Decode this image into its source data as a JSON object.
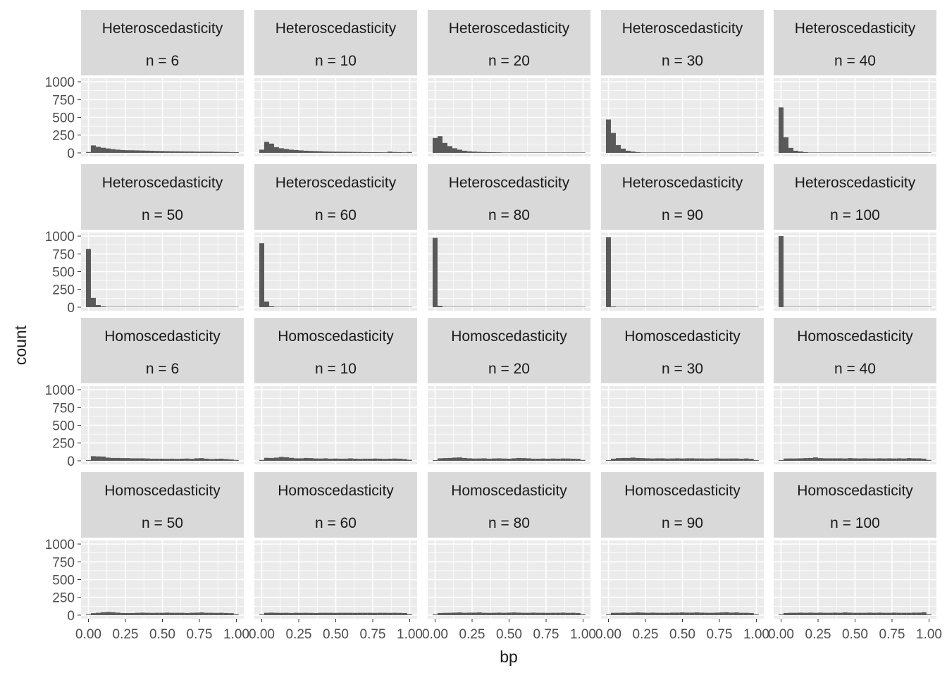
{
  "chart_data": {
    "type": "bar",
    "subtype": "faceted-histogram",
    "title": "",
    "xlabel": "bp",
    "ylabel": "count",
    "xlim": [
      0,
      1
    ],
    "ylim": [
      0,
      1000
    ],
    "x_ticks": [
      "0.00",
      "0.25",
      "0.50",
      "0.75",
      "1.00"
    ],
    "y_ticks": [
      "0",
      "250",
      "500",
      "750",
      "1000"
    ],
    "grid": true,
    "legend": "none",
    "colors": {
      "bar": "#595959",
      "panel_bg": "#ebebeb",
      "strip_bg": "#d9d9d9",
      "grid": "#ffffff",
      "text": "#1a1a1a",
      "tick_text": "#4d4d4d"
    },
    "bin_width": 0.0333,
    "bin_start": -0.0167,
    "panels": [
      {
        "group": "Heteroscedasticity",
        "n": "n = 6",
        "counts": [
          12,
          105,
          85,
          72,
          62,
          52,
          45,
          40,
          37,
          37,
          35,
          33,
          31,
          29,
          27,
          26,
          24,
          23,
          22,
          21,
          20,
          20,
          18,
          17,
          17,
          17,
          15,
          14,
          13,
          11,
          10
        ]
      },
      {
        "group": "Heteroscedasticity",
        "n": "n = 10",
        "counts": [
          45,
          155,
          130,
          80,
          65,
          55,
          45,
          40,
          35,
          30,
          27,
          25,
          23,
          20,
          18,
          17,
          16,
          15,
          14,
          13,
          12,
          11,
          10,
          10,
          9,
          8,
          18,
          12,
          10,
          8,
          12
        ]
      },
      {
        "group": "Heteroscedasticity",
        "n": "n = 20",
        "counts": [
          210,
          235,
          140,
          95,
          65,
          45,
          30,
          22,
          18,
          14,
          12,
          10,
          9,
          8,
          6,
          5,
          4,
          4,
          3,
          3,
          2,
          0,
          0,
          0,
          0,
          5,
          0,
          6,
          0,
          0,
          0
        ]
      },
      {
        "group": "Heteroscedasticity",
        "n": "n = 30",
        "counts": [
          470,
          280,
          110,
          60,
          30,
          20,
          10,
          6,
          4,
          2,
          1,
          0,
          0,
          0,
          0,
          0,
          0,
          0,
          0,
          0,
          0,
          0,
          0,
          0,
          0,
          0,
          0,
          0,
          0,
          0,
          0
        ]
      },
      {
        "group": "Heteroscedasticity",
        "n": "n = 40",
        "counts": [
          640,
          220,
          70,
          30,
          20,
          10,
          5,
          3,
          1,
          0,
          0,
          0,
          0,
          0,
          0,
          0,
          0,
          0,
          0,
          0,
          0,
          0,
          0,
          0,
          0,
          0,
          0,
          0,
          0,
          0,
          0
        ]
      },
      {
        "group": "Heteroscedasticity",
        "n": "n = 50",
        "counts": [
          820,
          130,
          30,
          12,
          5,
          2,
          1,
          0,
          0,
          0,
          0,
          0,
          0,
          0,
          0,
          0,
          0,
          0,
          0,
          0,
          0,
          0,
          0,
          0,
          0,
          0,
          0,
          0,
          0,
          0,
          0
        ]
      },
      {
        "group": "Heteroscedasticity",
        "n": "n = 60",
        "counts": [
          900,
          80,
          15,
          4,
          1,
          0,
          0,
          0,
          0,
          0,
          0,
          0,
          0,
          0,
          0,
          0,
          0,
          0,
          0,
          0,
          0,
          0,
          0,
          0,
          0,
          0,
          0,
          0,
          0,
          0,
          0
        ]
      },
      {
        "group": "Heteroscedasticity",
        "n": "n = 80",
        "counts": [
          975,
          20,
          5,
          0,
          0,
          0,
          0,
          0,
          0,
          0,
          0,
          0,
          0,
          0,
          0,
          0,
          0,
          0,
          0,
          0,
          0,
          0,
          0,
          0,
          0,
          0,
          0,
          0,
          0,
          0,
          0
        ]
      },
      {
        "group": "Heteroscedasticity",
        "n": "n = 90",
        "counts": [
          985,
          12,
          3,
          0,
          0,
          0,
          0,
          0,
          0,
          0,
          0,
          0,
          0,
          0,
          0,
          0,
          0,
          0,
          0,
          0,
          0,
          0,
          0,
          0,
          0,
          0,
          0,
          0,
          0,
          0,
          0
        ]
      },
      {
        "group": "Heteroscedasticity",
        "n": "n = 100",
        "counts": [
          1000,
          0,
          0,
          0,
          0,
          0,
          0,
          0,
          0,
          0,
          0,
          0,
          0,
          0,
          0,
          0,
          0,
          0,
          0,
          0,
          0,
          0,
          0,
          0,
          0,
          0,
          0,
          0,
          0,
          0,
          0
        ]
      },
      {
        "group": "Homoscedasticity",
        "n": "n = 6",
        "counts": [
          10,
          65,
          62,
          60,
          45,
          40,
          40,
          38,
          38,
          35,
          35,
          35,
          33,
          30,
          30,
          30,
          28,
          30,
          28,
          30,
          32,
          28,
          35,
          38,
          30,
          25,
          28,
          30,
          25,
          20,
          12
        ]
      },
      {
        "group": "Homoscedasticity",
        "n": "n = 10",
        "counts": [
          12,
          42,
          40,
          45,
          55,
          50,
          42,
          35,
          35,
          40,
          38,
          33,
          32,
          35,
          30,
          32,
          30,
          30,
          35,
          30,
          28,
          30,
          30,
          32,
          30,
          28,
          30,
          32,
          30,
          25,
          15
        ]
      },
      {
        "group": "Homoscedasticity",
        "n": "n = 20",
        "counts": [
          10,
          35,
          38,
          40,
          45,
          48,
          40,
          35,
          32,
          33,
          35,
          30,
          33,
          35,
          32,
          30,
          35,
          40,
          38,
          35,
          30,
          30,
          32,
          30,
          32,
          30,
          33,
          32,
          30,
          28,
          12
        ]
      },
      {
        "group": "Homoscedasticity",
        "n": "n = 30",
        "counts": [
          10,
          30,
          38,
          40,
          40,
          45,
          40,
          38,
          35,
          33,
          35,
          35,
          32,
          33,
          35,
          33,
          35,
          35,
          33,
          33,
          32,
          33,
          35,
          32,
          32,
          33,
          33,
          30,
          33,
          28,
          10
        ]
      },
      {
        "group": "Homoscedasticity",
        "n": "n = 40",
        "counts": [
          10,
          32,
          33,
          33,
          35,
          38,
          40,
          48,
          38,
          35,
          35,
          35,
          35,
          33,
          38,
          35,
          33,
          35,
          33,
          33,
          35,
          33,
          35,
          33,
          35,
          33,
          38,
          35,
          35,
          30,
          12
        ]
      },
      {
        "group": "Homoscedasticity",
        "n": "n = 50",
        "counts": [
          10,
          28,
          33,
          40,
          45,
          40,
          35,
          30,
          30,
          30,
          33,
          35,
          33,
          32,
          33,
          33,
          35,
          33,
          33,
          33,
          30,
          33,
          35,
          38,
          33,
          33,
          32,
          33,
          30,
          28,
          12
        ]
      },
      {
        "group": "Homoscedasticity",
        "n": "n = 60",
        "counts": [
          10,
          33,
          35,
          33,
          32,
          33,
          30,
          33,
          32,
          33,
          32,
          30,
          33,
          33,
          33,
          32,
          33,
          33,
          33,
          32,
          33,
          33,
          33,
          32,
          33,
          33,
          32,
          33,
          32,
          30,
          12
        ]
      },
      {
        "group": "Homoscedasticity",
        "n": "n = 80",
        "counts": [
          10,
          30,
          32,
          33,
          35,
          38,
          33,
          35,
          35,
          38,
          33,
          32,
          33,
          35,
          33,
          35,
          38,
          35,
          33,
          33,
          35,
          33,
          33,
          32,
          33,
          33,
          35,
          32,
          33,
          30,
          12
        ]
      },
      {
        "group": "Homoscedasticity",
        "n": "n = 90",
        "counts": [
          10,
          32,
          33,
          35,
          33,
          35,
          38,
          35,
          33,
          35,
          33,
          33,
          33,
          35,
          35,
          38,
          35,
          35,
          38,
          35,
          33,
          33,
          35,
          38,
          40,
          35,
          38,
          33,
          33,
          30,
          10
        ]
      },
      {
        "group": "Homoscedasticity",
        "n": "n = 100",
        "counts": [
          10,
          30,
          33,
          33,
          35,
          33,
          35,
          33,
          35,
          33,
          33,
          35,
          33,
          38,
          35,
          33,
          33,
          33,
          35,
          33,
          35,
          33,
          33,
          35,
          33,
          33,
          33,
          35,
          35,
          40,
          12
        ]
      }
    ]
  }
}
